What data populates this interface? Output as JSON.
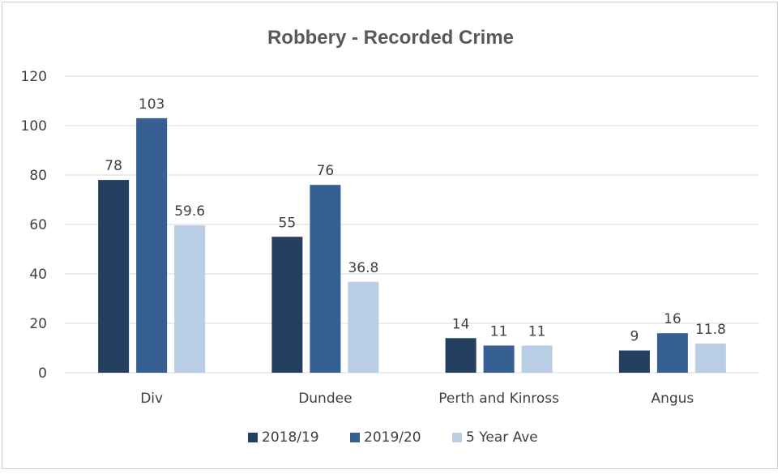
{
  "chart_data": {
    "type": "bar",
    "title": "Robbery - Recorded Crime",
    "xlabel": "",
    "ylabel": "",
    "categories": [
      "Div",
      "Dundee",
      "Perth and Kinross",
      "Angus"
    ],
    "series": [
      {
        "name": "2018/19",
        "color": "#243f60",
        "values": [
          78,
          55,
          14,
          9
        ]
      },
      {
        "name": "2019/20",
        "color": "#366092",
        "values": [
          103,
          76,
          11,
          16
        ]
      },
      {
        "name": "5 Year Ave",
        "color": "#b9cde5",
        "values": [
          59.6,
          36.8,
          11,
          11.8
        ]
      }
    ],
    "data_labels": [
      [
        "78",
        "55",
        "14",
        "9"
      ],
      [
        "103",
        "76",
        "11",
        "16"
      ],
      [
        "59.6",
        "36.8",
        "11",
        "11.8"
      ]
    ],
    "ylim": [
      0,
      120
    ],
    "yticks": [
      0,
      20,
      40,
      60,
      80,
      100,
      120
    ],
    "ytick_labels": [
      "0",
      "20",
      "40",
      "60",
      "80",
      "100",
      "120"
    ],
    "grid": true,
    "legend_position": "bottom"
  }
}
